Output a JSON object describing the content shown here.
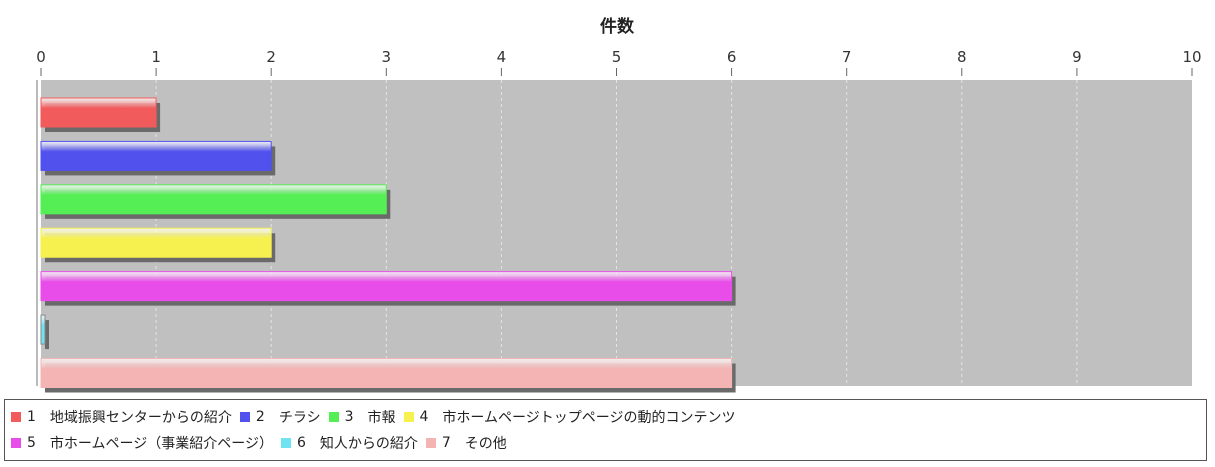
{
  "chart_data": {
    "type": "bar",
    "orientation": "horizontal",
    "title": "件数",
    "xlim": [
      0,
      10
    ],
    "ticks": [
      "0",
      "1",
      "2",
      "3",
      "4",
      "5",
      "6",
      "7",
      "8",
      "9",
      "10"
    ],
    "grid": true,
    "legend_position": "bottom",
    "categories": [
      "1",
      "2",
      "3",
      "4",
      "5",
      "6",
      "7"
    ],
    "values": [
      1,
      2,
      3,
      2,
      6,
      0,
      6
    ],
    "legend": [
      {
        "num": "1",
        "label": "地域振興センターからの紹介",
        "color": "#f25b5b"
      },
      {
        "num": "2",
        "label": "チラシ",
        "color": "#5151ee"
      },
      {
        "num": "3",
        "label": "市報",
        "color": "#55ee55"
      },
      {
        "num": "4",
        "label": "市ホームページトップページの動的コンテンツ",
        "color": "#f6f14e"
      },
      {
        "num": "5",
        "label": "市ホームページ（事業紹介ページ）",
        "color": "#e94de9"
      },
      {
        "num": "6",
        "label": "知人からの紹介",
        "color": "#6fe3f2"
      },
      {
        "num": "7",
        "label": "その他",
        "color": "#f4b4b4"
      }
    ],
    "plot_background": "#c0c0c0"
  }
}
